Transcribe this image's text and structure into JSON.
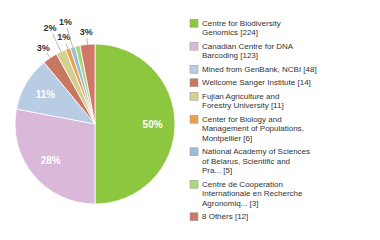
{
  "chart_data": {
    "type": "pie",
    "categories": [
      "Centre for Biodiversity\nGenomics [224]",
      "Canadian Centre for DNA\nBarcoding [123]",
      "Mined from GenBank, NCBI [48]",
      "Wellcome Sanger Institute [14]",
      "Fujian Agriculture and\nForestry University [11]",
      "Center for Biology and\nManagement of Populations,\nMontpellier [6]",
      "National Academy of Sciences\nof Belarus, Scientific and\nPra... [5]",
      "Centre de Cooperation\nInternationale en Recherche\nAgronomiq... [3]",
      "8 Others [12]"
    ],
    "values": [
      50,
      28,
      11,
      3,
      2,
      1,
      1,
      1,
      3
    ],
    "value_labels": [
      "50%",
      "28%",
      "11%",
      "3%",
      "2%",
      "1%",
      "1%",
      null,
      "3%"
    ],
    "colors": [
      "#8dc63f",
      "#d9b8d9",
      "#b8cce4",
      "#c87860",
      "#d4d090",
      "#e8a050",
      "#9bbcd8",
      "#a8d878",
      "#d07868"
    ],
    "data_labels": true,
    "legend": "right"
  }
}
